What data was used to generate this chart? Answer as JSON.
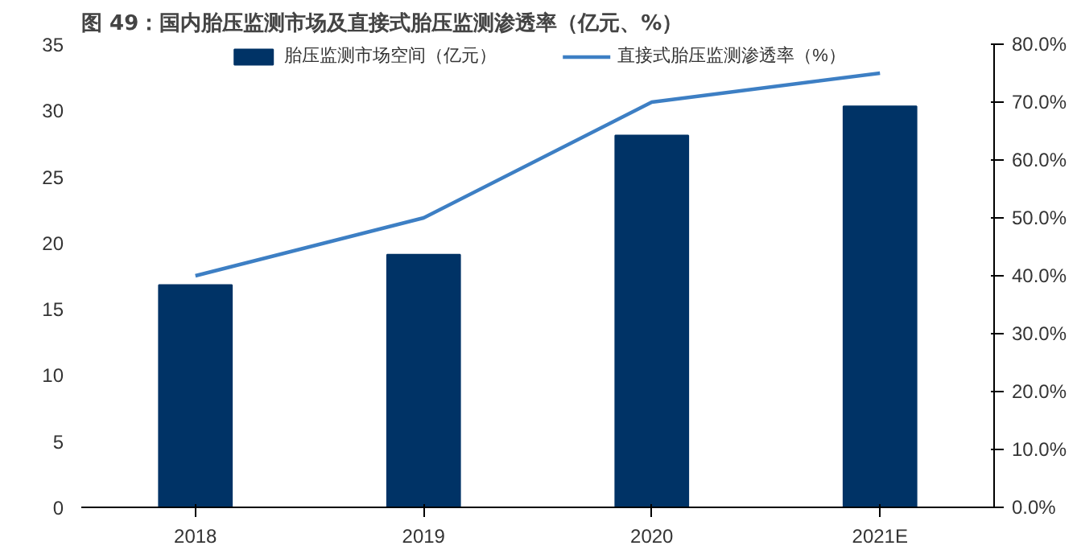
{
  "chart_data": {
    "type": "bar",
    "title": "图 49：国内胎压监测市场及直接式胎压监测渗透率（亿元、%）",
    "categories": [
      "2018",
      "2019",
      "2020",
      "2021E"
    ],
    "series": [
      {
        "name": "胎压监测市场空间（亿元）",
        "color": "#003366",
        "values": [
          16.8,
          19.1,
          28.1,
          30.3
        ]
      },
      {
        "name": "直接式胎压监测渗透率（%）",
        "type": "line",
        "axis": "y2",
        "color": "#3d7fc4",
        "values": [
          40,
          50,
          70,
          75
        ]
      }
    ],
    "ylim": [
      0,
      35
    ],
    "yticks": [
      0,
      5,
      10,
      15,
      20,
      25,
      30,
      35
    ],
    "y2lim": [
      0,
      80
    ],
    "y2ticks": [
      {
        "value": 0,
        "label": "0.0%"
      },
      {
        "value": 10,
        "label": "10.0%"
      },
      {
        "value": 20,
        "label": "20.0%"
      },
      {
        "value": 30,
        "label": "30.0%"
      },
      {
        "value": 40,
        "label": "40.0%"
      },
      {
        "value": 50,
        "label": "50.0%"
      },
      {
        "value": 60,
        "label": "60.0%"
      },
      {
        "value": 70,
        "label": "70.0%"
      },
      {
        "value": 80,
        "label": "80.0%"
      }
    ],
    "grid": false,
    "legend": "top",
    "line_style": "solid"
  }
}
